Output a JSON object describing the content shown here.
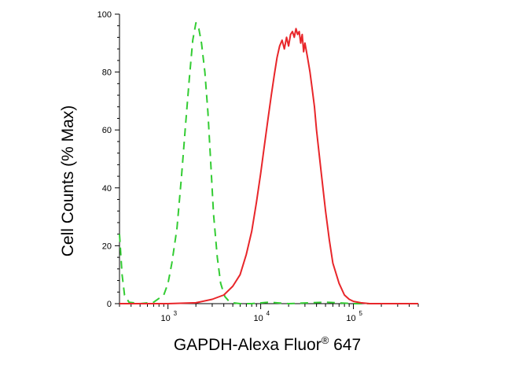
{
  "chart_data": {
    "type": "line",
    "x_scale": "log",
    "xlim": [
      300,
      500000
    ],
    "ylim": [
      0,
      100
    ],
    "ylabel": "Cell Counts (% Max)",
    "xlabel": {
      "main": "GAPDH-Alexa Fluor",
      "sup": "®",
      "tail": " 647"
    },
    "y_ticks": [
      {
        "value": 0,
        "label": "0"
      },
      {
        "value": 20,
        "label": "20"
      },
      {
        "value": 40,
        "label": "40"
      },
      {
        "value": 60,
        "label": "60"
      },
      {
        "value": 80,
        "label": "80"
      },
      {
        "value": 100,
        "label": "100"
      }
    ],
    "x_ticks": [
      {
        "value": 1000,
        "base": "10",
        "exp": "3"
      },
      {
        "value": 10000,
        "base": "10",
        "exp": "4"
      },
      {
        "value": 100000,
        "base": "10",
        "exp": "5"
      }
    ],
    "grid": false,
    "series": [
      {
        "color": "#33cc33",
        "style": "dashed",
        "x": [
          300,
          320,
          340,
          380,
          500,
          700,
          900,
          1000,
          1100,
          1250,
          1400,
          1550,
          1700,
          1850,
          2000,
          2150,
          2300,
          2500,
          2700,
          2900,
          3100,
          3400,
          3700,
          4100,
          4500,
          5000,
          6000,
          8000,
          12000,
          20000,
          50000,
          100000,
          500000
        ],
        "y": [
          24,
          10,
          3,
          0.5,
          0,
          0.5,
          3,
          7,
          14,
          26,
          44,
          62,
          78,
          91,
          97,
          95,
          90,
          80,
          66,
          48,
          31,
          16,
          7,
          2.5,
          1,
          0.3,
          0,
          0,
          0.5,
          0,
          0.5,
          0,
          0
        ]
      },
      {
        "color": "#e8262a",
        "style": "solid",
        "x": [
          300,
          1000,
          2000,
          3000,
          4000,
          5000,
          6000,
          7000,
          8000,
          9000,
          10000,
          11000,
          12000,
          13000,
          14000,
          15000,
          16000,
          17000,
          18000,
          19000,
          20000,
          21000,
          22000,
          23000,
          24000,
          25000,
          26000,
          27000,
          28000,
          29000,
          30000,
          32000,
          34000,
          36000,
          38000,
          40000,
          45000,
          50000,
          55000,
          60000,
          70000,
          80000,
          90000,
          100000,
          120000,
          150000,
          200000,
          500000
        ],
        "y": [
          0,
          0,
          0.3,
          1.5,
          3,
          6,
          10,
          17,
          25,
          35,
          45,
          55,
          64,
          72,
          79,
          85,
          89,
          91,
          88,
          92,
          89,
          93,
          94,
          92,
          95,
          93,
          94,
          90,
          93,
          87,
          90,
          85,
          80,
          74,
          68,
          60,
          45,
          32,
          22,
          14,
          7,
          3,
          1.5,
          0.8,
          0.3,
          0,
          0,
          0
        ]
      }
    ]
  }
}
